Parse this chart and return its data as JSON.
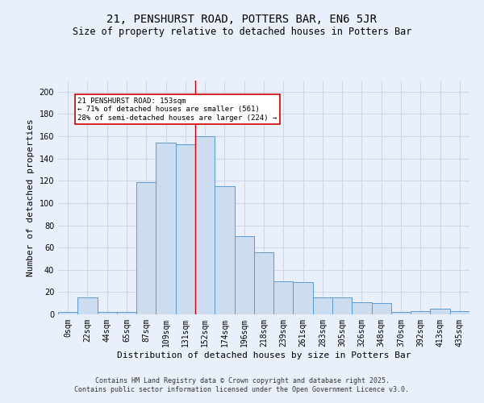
{
  "title": "21, PENSHURST ROAD, POTTERS BAR, EN6 5JR",
  "subtitle": "Size of property relative to detached houses in Potters Bar",
  "xlabel": "Distribution of detached houses by size in Potters Bar",
  "ylabel": "Number of detached properties",
  "bin_labels": [
    "0sqm",
    "22sqm",
    "44sqm",
    "65sqm",
    "87sqm",
    "109sqm",
    "131sqm",
    "152sqm",
    "174sqm",
    "196sqm",
    "218sqm",
    "239sqm",
    "261sqm",
    "283sqm",
    "305sqm",
    "326sqm",
    "348sqm",
    "370sqm",
    "392sqm",
    "413sqm",
    "435sqm"
  ],
  "bar_values": [
    2,
    15,
    2,
    2,
    119,
    154,
    153,
    160,
    115,
    70,
    56,
    30,
    29,
    15,
    15,
    11,
    10,
    2,
    3,
    5,
    3
  ],
  "bar_color": "#ccddf0",
  "bar_edge_color": "#5b9bd5",
  "vline_x": 6.5,
  "vline_color": "#cc0000",
  "annotation_text": "21 PENSHURST ROAD: 153sqm\n← 71% of detached houses are smaller (561)\n28% of semi-detached houses are larger (224) →",
  "annotation_box_color": "#ffffff",
  "annotation_box_edge": "#cc0000",
  "ylim": [
    0,
    210
  ],
  "yticks": [
    0,
    20,
    40,
    60,
    80,
    100,
    120,
    140,
    160,
    180,
    200
  ],
  "footer_line1": "Contains HM Land Registry data © Crown copyright and database right 2025.",
  "footer_line2": "Contains public sector information licensed under the Open Government Licence v3.0.",
  "bg_color": "#eaf0fb",
  "grid_color": "#d0d8e8",
  "title_fontsize": 10,
  "subtitle_fontsize": 8.5,
  "axis_label_fontsize": 8,
  "tick_fontsize": 7
}
